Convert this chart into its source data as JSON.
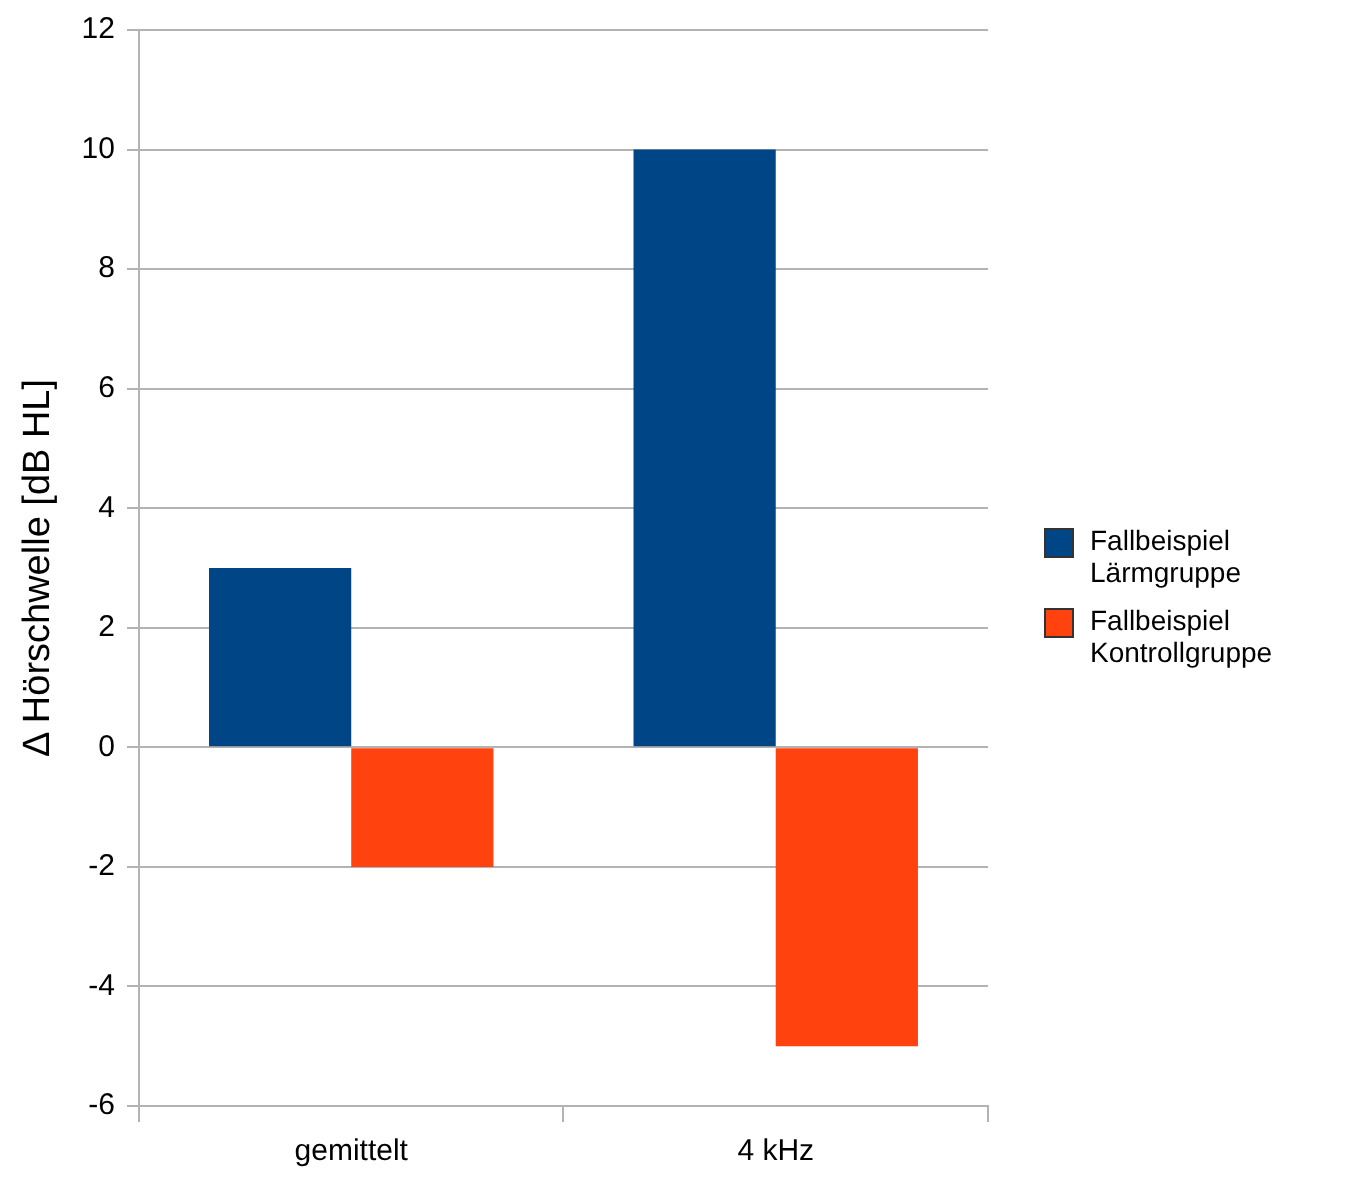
{
  "chart_data": {
    "type": "bar",
    "ylabel": "Δ Hörschwelle [dB HL]",
    "categories": [
      "gemittelt",
      "4 kHz"
    ],
    "series": [
      {
        "name": "Fallbeispiel Lärmgruppe",
        "color": "#004586",
        "values": [
          3,
          10
        ]
      },
      {
        "name": "Fallbeispiel Kontrollgruppe",
        "color": "#ff420e",
        "values": [
          -2,
          -5
        ]
      }
    ],
    "ylim": [
      -6,
      12
    ],
    "yticks": [
      -6,
      -4,
      -2,
      0,
      2,
      4,
      6,
      8,
      10,
      12
    ],
    "grid": "y",
    "legend": "right"
  }
}
